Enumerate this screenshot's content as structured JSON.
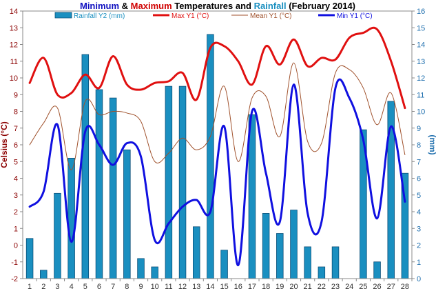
{
  "chart_data": {
    "type": "bar+line",
    "title_parts": [
      {
        "text": "Minimum",
        "color": "#1010c0"
      },
      {
        "text": " & ",
        "color": "#000000"
      },
      {
        "text": "Maximum",
        "color": "#d00000"
      },
      {
        "text": " Temperatures and ",
        "color": "#000000"
      },
      {
        "text": "Rainfall",
        "color": "#1a8fc0"
      },
      {
        "text": " (February 2014)",
        "color": "#000000"
      }
    ],
    "ylabel": "Celsius (°C)",
    "y2label": "(mm)",
    "ylim": [
      -2,
      14
    ],
    "y2lim": [
      0,
      16
    ],
    "yticks": [
      "-2",
      "-1",
      "0",
      "1",
      "2",
      "3",
      "4",
      "5",
      "6",
      "7",
      "8",
      "9",
      "10",
      "11",
      "12",
      "13",
      "14"
    ],
    "y2ticks": [
      "0",
      "1",
      "2",
      "3",
      "4",
      "5",
      "6",
      "7",
      "8",
      "9",
      "10",
      "11",
      "12",
      "13",
      "14",
      "15",
      "16"
    ],
    "categories": [
      "1",
      "2",
      "3",
      "4",
      "5",
      "6",
      "7",
      "8",
      "9",
      "10",
      "11",
      "12",
      "13",
      "14",
      "15",
      "16",
      "17",
      "18",
      "19",
      "20",
      "21",
      "22",
      "23",
      "24",
      "25",
      "26",
      "27",
      "28"
    ],
    "grid": false,
    "legend": "top",
    "series": [
      {
        "name": "Rainfall Y2 (mm)",
        "kind": "bar",
        "axis": "y2",
        "color": "#1a8fc0",
        "values": [
          2.4,
          0.5,
          5.1,
          7.2,
          13.4,
          11.3,
          10.8,
          7.7,
          1.2,
          0.7,
          11.5,
          11.5,
          3.1,
          14.6,
          1.7,
          0,
          9.8,
          3.9,
          2.7,
          4.1,
          1.9,
          0.7,
          1.9,
          0,
          8.9,
          1.0,
          10.6,
          6.3
        ]
      },
      {
        "name": "Max Y1 (°C)",
        "kind": "line",
        "axis": "y",
        "color": "#e01010",
        "width": 3,
        "values": [
          9.7,
          11.2,
          9.0,
          9.1,
          10.2,
          9.4,
          11.3,
          9.6,
          9.3,
          9.7,
          9.8,
          10.3,
          8.7,
          11.8,
          11.9,
          11.0,
          9.6,
          11.9,
          10.8,
          12.3,
          10.7,
          11.2,
          11.1,
          12.4,
          12.7,
          12.9,
          11.0,
          8.2
        ]
      },
      {
        "name": "Mean Y1 (°C)",
        "kind": "line",
        "axis": "y",
        "color": "#a0522d",
        "width": 1,
        "values": [
          6.0,
          7.3,
          8.2,
          4.5,
          8.6,
          7.8,
          8.0,
          7.9,
          7.4,
          5.0,
          5.5,
          6.4,
          5.7,
          6.5,
          9.5,
          5.0,
          8.8,
          8.9,
          6.5,
          10.9,
          6.2,
          6.1,
          10.3,
          10.5,
          9.4,
          7.2,
          9.1,
          5.4
        ]
      },
      {
        "name": "Min Y1 (°C)",
        "kind": "line",
        "axis": "y",
        "color": "#1010e0",
        "width": 3,
        "values": [
          2.3,
          3.2,
          7.2,
          0.2,
          6.8,
          6.0,
          4.8,
          6.1,
          5.3,
          0.3,
          1.3,
          2.3,
          2.7,
          2.0,
          7.1,
          -1.2,
          8.0,
          4.3,
          1.4,
          9.6,
          1.9,
          1.4,
          9.4,
          8.8,
          6.3,
          1.6,
          7.1,
          2.6
        ]
      }
    ]
  }
}
